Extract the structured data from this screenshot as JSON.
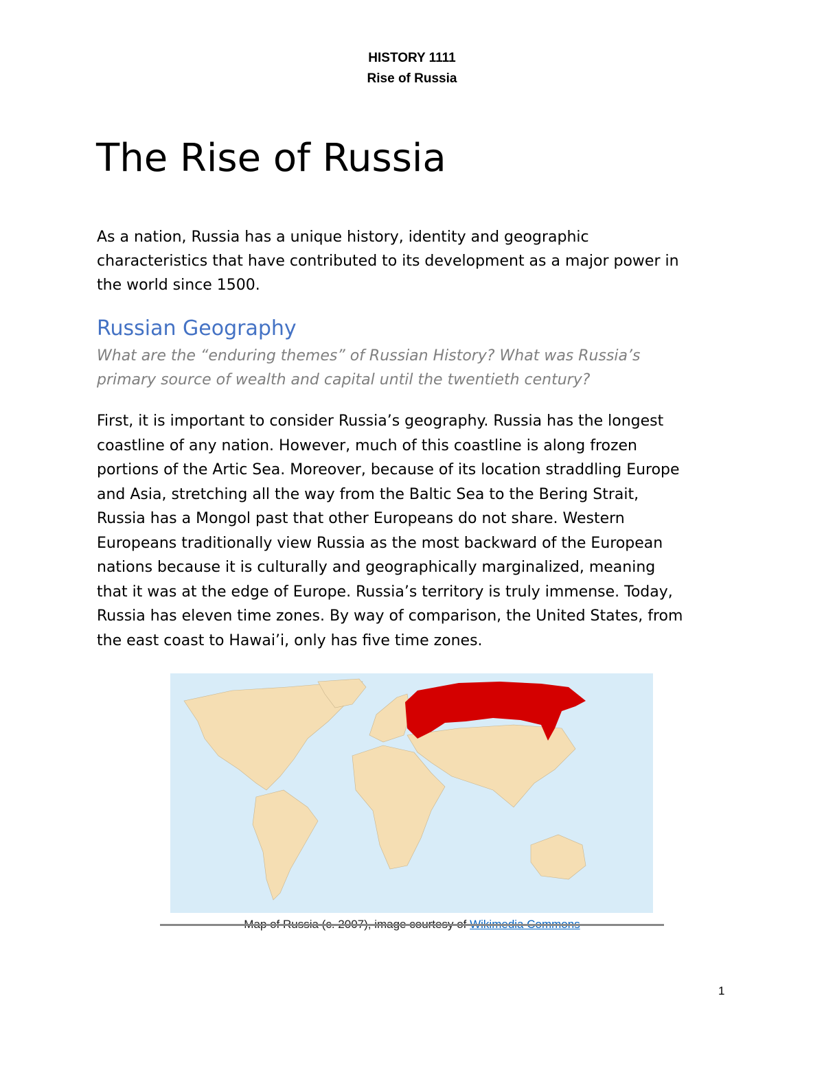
{
  "header": {
    "course": "HISTORY 1111",
    "topic": "Rise of Russia"
  },
  "title": "The Rise of Russia",
  "intro_lines": [
    "As a nation, Russia has a unique history, identity and geographic",
    "characteristics that have contributed to its development as a major power in",
    "the world since 1500."
  ],
  "section": {
    "heading": "Russian Geography",
    "question_lines": [
      "What are the “enduring themes” of Russian History? What was Russia’s",
      "primary source of wealth and capital until the twentieth century?"
    ],
    "body_lines": [
      "First, it is important to consider Russia’s geography. Russia has the longest",
      "coastline of any nation. However, much of this coastline is along frozen",
      "portions of the Artic Sea. Moreover, because of its location straddling Europe",
      "and Asia, stretching all the way from the Baltic Sea to the Bering Strait,",
      "Russia has a Mongol past that other Europeans do not share. Western",
      "Europeans traditionally view Russia as the most backward of the European",
      "nations because it is culturally and geographically marginalized, meaning",
      "that it was at the edge of Europe. Russia’s territory is truly immense. Today,",
      "Russia has eleven time zones. By way of comparison, the United States, from",
      "the east coast to Hawai’i, only has five time zones."
    ]
  },
  "figure": {
    "caption_text": "Map of Russia (c. 2007), image courtesy of ",
    "caption_link": "Wikimedia Commons",
    "colors": {
      "ocean": "#d8ecf8",
      "land": "#f5deb3",
      "russia": "#d40000"
    }
  },
  "page_number": "1"
}
